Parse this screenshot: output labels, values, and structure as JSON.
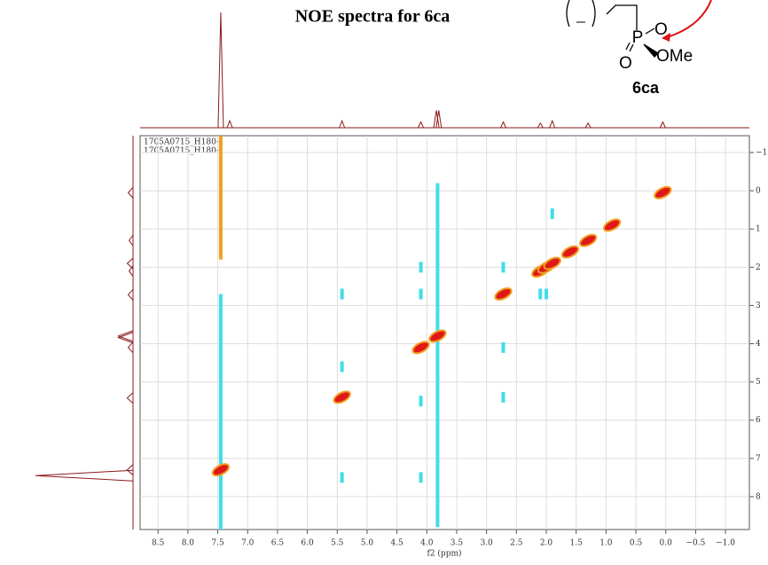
{
  "chart_data": {
    "type": "nmr2d",
    "title": "NOE spectra for 6ca",
    "compound": {
      "label": "6ca",
      "atoms": [
        "P",
        "O",
        "O",
        "OMe"
      ]
    },
    "dataset_labels": [
      "1705A0715_H180-1",
      "1705A0715_H180-1"
    ],
    "xlabel": "f2 (ppm)",
    "xlim": [
      8.8,
      -1.4
    ],
    "ylim": [
      -1.44,
      8.86
    ],
    "xticks": [
      8.5,
      {
        "value": 8,
        "label": "8.0"
      },
      7.5,
      {
        "value": 7,
        "label": "7.0"
      },
      6.5,
      {
        "value": 6,
        "label": "6.0"
      },
      5.5,
      {
        "value": 5,
        "label": "5.0"
      },
      4.5,
      {
        "value": 4,
        "label": "4.0"
      },
      3.5,
      {
        "value": 3,
        "label": "3.0"
      },
      2.5,
      {
        "value": 2,
        "label": "2.0"
      },
      1.5,
      {
        "value": 1,
        "label": "1.0"
      },
      0.5,
      {
        "value": 0,
        "label": "0.0"
      },
      {
        "value": -0.5,
        "label": "−0.5"
      },
      {
        "value": -1,
        "label": "−1.0"
      }
    ],
    "yticks": [
      {
        "value": -1,
        "label": "−1"
      },
      0,
      1,
      2,
      3,
      4,
      5,
      6,
      7,
      8
    ],
    "grid": true,
    "series": [
      {
        "color": "#e01818",
        "x": [
          7.45,
          5.42,
          4.1,
          3.82,
          2.72,
          2.1,
          2.0,
          1.9,
          1.6,
          1.3,
          0.9,
          0.05
        ],
        "y": [
          7.3,
          5.4,
          4.1,
          3.8,
          2.7,
          2.1,
          2.0,
          1.9,
          1.6,
          1.3,
          0.9,
          0.05
        ]
      },
      {
        "color": "#40dde8",
        "x": [
          5.42,
          5.42,
          5.42,
          4.1,
          4.1,
          4.1,
          4.1,
          2.72,
          2.72,
          2.72,
          2.1,
          2.0,
          1.9
        ],
        "y": [
          2.7,
          4.6,
          7.5,
          2.0,
          2.7,
          7.5,
          5.5,
          2.0,
          4.1,
          5.4,
          2.7,
          2.7,
          0.6
        ]
      }
    ],
    "ridges": [
      {
        "color": "#f0a020",
        "x": 7.45,
        "y": [
          -1.44,
          1.8
        ]
      },
      {
        "color": "#40dde8",
        "x": 7.45,
        "y": [
          2.7,
          8.86
        ]
      },
      {
        "color": "#40dde8",
        "x": 3.82,
        "y": [
          -0.2,
          8.8
        ]
      }
    ],
    "projection": {
      "color": "#8b1a1a",
      "x": [
        7.45,
        7.3,
        5.42,
        4.1,
        3.84,
        3.8,
        2.72,
        2.1,
        1.9,
        1.3,
        0.05
      ],
      "heights": [
        100,
        6,
        6,
        5,
        15,
        15,
        5,
        4,
        6,
        4,
        5
      ]
    }
  }
}
